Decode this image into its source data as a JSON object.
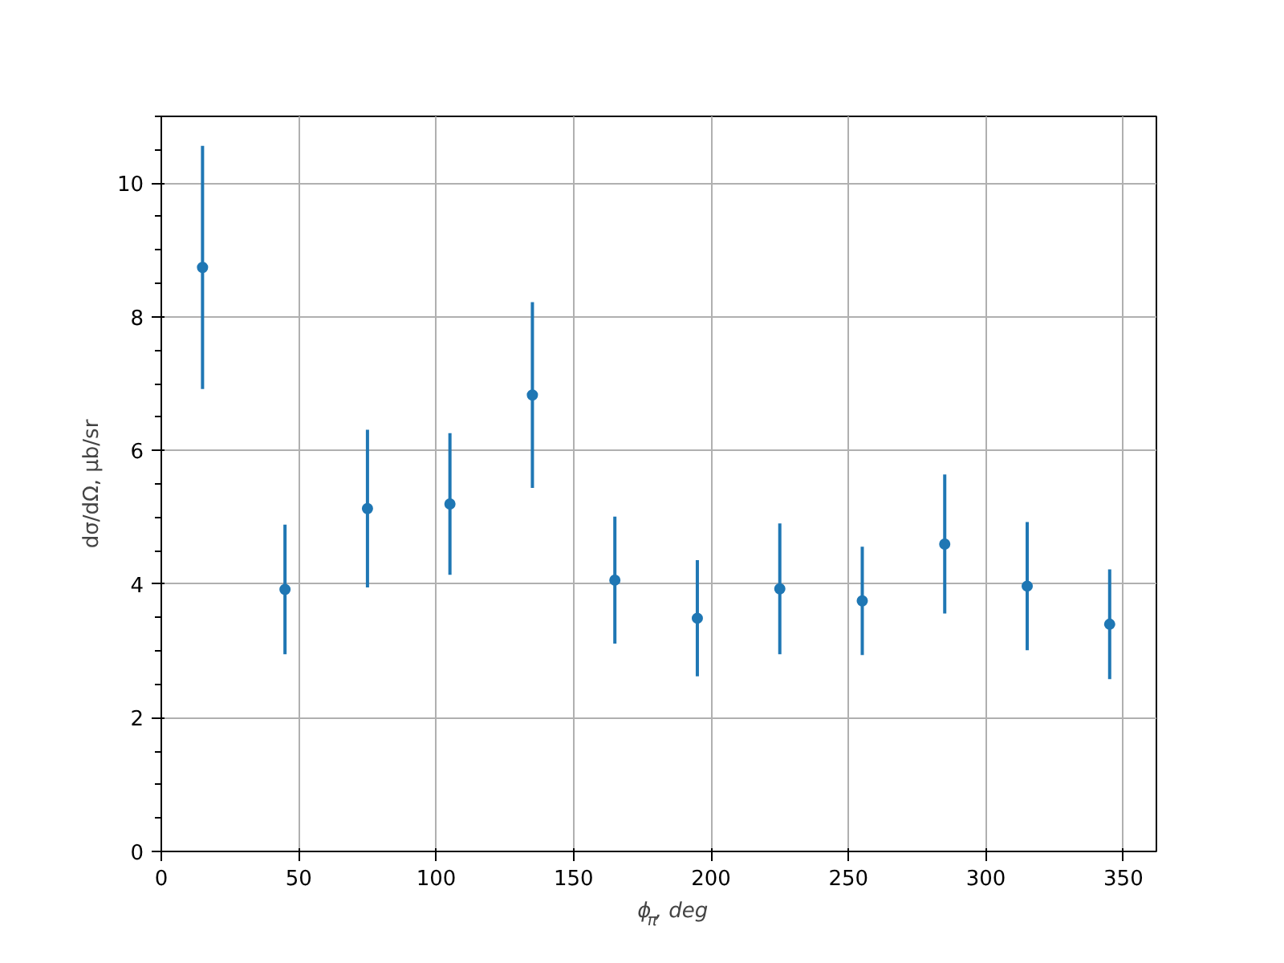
{
  "chart_data": {
    "type": "scatter",
    "xlabel": "ϕ$_{π}$, deg",
    "ylabel": "dσ/dΩ, μb/sr",
    "x": [
      15,
      45,
      75,
      105,
      135,
      165,
      195,
      225,
      255,
      285,
      315,
      345
    ],
    "series": [
      {
        "color": "#1f77b4",
        "values": [
          8.74,
          3.92,
          5.13,
          5.2,
          6.83,
          4.06,
          3.49,
          3.93,
          3.75,
          4.6,
          3.97,
          3.4
        ],
        "errors": [
          1.82,
          0.97,
          1.18,
          1.06,
          1.39,
          0.95,
          0.87,
          0.98,
          0.81,
          1.04,
          0.96,
          0.82
        ]
      }
    ],
    "xlim": [
      0,
      362
    ],
    "ylim": [
      0,
      11
    ],
    "xticks": [
      0,
      50,
      100,
      150,
      200,
      250,
      300,
      350
    ],
    "yticks": [
      0,
      2,
      4,
      6,
      8,
      10
    ],
    "grid": true,
    "marker": "circle"
  }
}
